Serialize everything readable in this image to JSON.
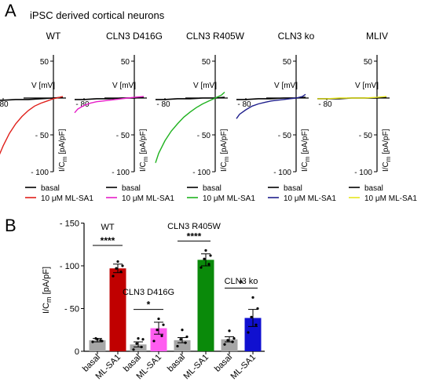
{
  "panel_a": {
    "label": "A",
    "subtitle": "iPSC derived cortical neurons",
    "x_axis_label": "V [mV]",
    "x_tick": "- 80",
    "y_axis_label_main": "I/C",
    "y_axis_label_sub": "m",
    "y_axis_label_unit": " [pA/pF]",
    "y_ticks": [
      "50",
      "- 50",
      "- 100"
    ],
    "legend_basal": "basal",
    "legend_treated": "10 μM ML-SA1"
  },
  "panel_b": {
    "label": "B",
    "y_axis_label_main": "I/C",
    "y_axis_label_sub": "m",
    "y_axis_label_unit": " [pA/pF]",
    "y_ticks": [
      "- 150",
      "- 100",
      "- 50",
      "0"
    ],
    "x_tick_labels": [
      "basal",
      "ML-SA1",
      "basal",
      "ML-SA1",
      "basal",
      "ML-SA1",
      "basal",
      "ML-SA1"
    ],
    "groups": [
      {
        "name": "WT",
        "sig": "****"
      },
      {
        "name": "CLN3 D416G",
        "sig": "*"
      },
      {
        "name": "CLN3 R405W",
        "sig": "****"
      },
      {
        "name": "CLN3 ko",
        "sig": "*"
      }
    ]
  },
  "colors": {
    "basal": "#000000",
    "WT": "#e0201b",
    "CLN3 D416G": "#e61ec8",
    "CLN3 R405W": "#1fb21f",
    "CLN3 ko": "#1f1f8c",
    "MLIV": "#e6e61e",
    "bar_basal": "#a6a6a6",
    "bar_WT": "#c00000",
    "bar_D416G": "#ff5cf0",
    "bar_R405W": "#0a8a0a",
    "bar_ko": "#1010d0"
  },
  "chart_data": [
    {
      "type": "line",
      "xlabel": "V [mV]",
      "ylabel": "I/Cm [pA/pF]",
      "xlim": [
        -100,
        20
      ],
      "ylim": [
        -100,
        50
      ],
      "panels": [
        {
          "title": "WT",
          "color_key": "WT",
          "series": [
            {
              "name": "basal",
              "x": [
                -95,
                -80,
                -60,
                -40,
                -20,
                0,
                15
              ],
              "y": [
                -3,
                -3,
                -2,
                -2,
                -1,
                0,
                1
              ]
            },
            {
              "name": "10 μM ML-SA1",
              "x": [
                -95,
                -90,
                -80,
                -70,
                -60,
                -50,
                -40,
                -30,
                -20,
                -10,
                0,
                10,
                15
              ],
              "y": [
                -97,
                -85,
                -65,
                -48,
                -35,
                -25,
                -17,
                -11,
                -7,
                -4,
                -1,
                1,
                2
              ]
            }
          ]
        },
        {
          "title": "CLN3 D416G",
          "color_key": "CLN3 D416G",
          "series": [
            {
              "name": "basal",
              "x": [
                -95,
                -80,
                -60,
                -40,
                -20,
                0,
                15
              ],
              "y": [
                -2,
                -2,
                -1,
                -1,
                0,
                0,
                1
              ]
            },
            {
              "name": "10 μM ML-SA1",
              "x": [
                -95,
                -90,
                -80,
                -70,
                -60,
                -50,
                -40,
                -30,
                -20,
                -10,
                0,
                15
              ],
              "y": [
                -20,
                -15,
                -10,
                -7,
                -5,
                -4,
                -3,
                -2,
                -1,
                0,
                1,
                2
              ]
            }
          ]
        },
        {
          "title": "CLN3 R405W",
          "color_key": "CLN3 R405W",
          "series": [
            {
              "name": "basal",
              "x": [
                -95,
                -80,
                -60,
                -40,
                -20,
                0,
                15
              ],
              "y": [
                -2,
                -2,
                -1,
                -1,
                0,
                0,
                1
              ]
            },
            {
              "name": "10 μM ML-SA1",
              "x": [
                -95,
                -90,
                -80,
                -70,
                -60,
                -50,
                -40,
                -30,
                -20,
                -10,
                0,
                10,
                15
              ],
              "y": [
                -88,
                -75,
                -58,
                -45,
                -35,
                -26,
                -19,
                -13,
                -8,
                -4,
                0,
                4,
                8
              ]
            }
          ]
        },
        {
          "title": "CLN3 ko",
          "color_key": "CLN3 ko",
          "series": [
            {
              "name": "basal",
              "x": [
                -95,
                -80,
                -60,
                -40,
                -20,
                0,
                15
              ],
              "y": [
                -2,
                -2,
                -1,
                -1,
                0,
                0,
                1
              ]
            },
            {
              "name": "10 μM ML-SA1",
              "x": [
                -95,
                -90,
                -80,
                -70,
                -60,
                -50,
                -40,
                -30,
                -20,
                -10,
                0,
                10,
                15
              ],
              "y": [
                -28,
                -22,
                -16,
                -11,
                -8,
                -6,
                -4,
                -3,
                -2,
                -1,
                0,
                2,
                5
              ]
            }
          ]
        },
        {
          "title": "MLIV",
          "color_key": "MLIV",
          "series": [
            {
              "name": "basal",
              "x": [
                -95,
                -80,
                -60,
                -40,
                -20,
                0,
                15
              ],
              "y": [
                -1,
                -1,
                -1,
                0,
                0,
                0,
                1
              ]
            },
            {
              "name": "10 μM ML-SA1",
              "x": [
                -95,
                -80,
                -60,
                -40,
                -20,
                0,
                15
              ],
              "y": [
                -1,
                -1,
                0,
                0,
                0,
                1,
                2
              ]
            }
          ]
        }
      ]
    },
    {
      "type": "bar",
      "ylabel": "I/Cm [pA/pF]",
      "ylim": [
        0,
        150
      ],
      "y_ticks_values": [
        0,
        50,
        100,
        150
      ],
      "categories": [
        "basal",
        "ML-SA1",
        "basal",
        "ML-SA1",
        "basal",
        "ML-SA1",
        "basal",
        "ML-SA1"
      ],
      "groups": [
        "WT",
        "CLN3 D416G",
        "CLN3 R405W",
        "CLN3 ko"
      ],
      "values": [
        13,
        97,
        8,
        27,
        13,
        107,
        14,
        39
      ],
      "errors": [
        2,
        5,
        3,
        7,
        3,
        7,
        3,
        10
      ],
      "bar_color_keys": [
        "bar_basal",
        "bar_WT",
        "bar_basal",
        "bar_D416G",
        "bar_basal",
        "bar_R405W",
        "bar_basal",
        "bar_ko"
      ],
      "points": [
        [
          11,
          13,
          15,
          12,
          14
        ],
        [
          88,
          93,
          97,
          100,
          105
        ],
        [
          2,
          5,
          9,
          14,
          15
        ],
        [
          12,
          18,
          25,
          31,
          38
        ],
        [
          6,
          10,
          14,
          17,
          25
        ],
        [
          98,
          102,
          108,
          112,
          118
        ],
        [
          8,
          11,
          13,
          15,
          24
        ],
        [
          22,
          31,
          40,
          50,
          63
        ]
      ],
      "significance": [
        {
          "pair": [
            0,
            1
          ],
          "label": "****"
        },
        {
          "pair": [
            2,
            3
          ],
          "label": "*"
        },
        {
          "pair": [
            4,
            5
          ],
          "label": "****"
        },
        {
          "pair": [
            6,
            7
          ],
          "label": "*"
        }
      ]
    }
  ]
}
